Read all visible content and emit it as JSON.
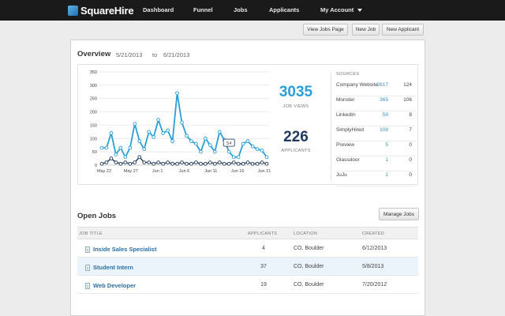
{
  "app": {
    "name": "SquareHire"
  },
  "nav": {
    "items": [
      {
        "label": "Dashboard"
      },
      {
        "label": "Funnel"
      },
      {
        "label": "Jobs"
      },
      {
        "label": "Applicants"
      },
      {
        "label": "My Account"
      }
    ]
  },
  "toolbar": {
    "view_jobs_page": "View Jobs Page",
    "new_job": "New Job",
    "new_applicant": "New Applicant"
  },
  "overview": {
    "title": "Overview",
    "date_from": "5/21/2013",
    "date_sep": "to",
    "date_to": "6/21/2013",
    "job_views": "3035",
    "job_views_label": "JOB VIEWS",
    "applicants": "226",
    "applicants_label": "APPLICANTS",
    "colors": {
      "views": "#2a9fd6",
      "applicants": "#1f3a5c"
    }
  },
  "chart_data": {
    "type": "line",
    "x_tick_labels": [
      "May 22",
      "May 27",
      "Jun 1",
      "Jun 6",
      "Jun 11",
      "Jun 16",
      "Jun 21"
    ],
    "y_ticks": [
      0,
      50,
      100,
      150,
      200,
      250,
      300,
      350
    ],
    "ylim": [
      0,
      350
    ],
    "grid": true,
    "tooltip": "54",
    "series": [
      {
        "values": [
          65,
          65,
          120,
          40,
          65,
          30,
          65,
          155,
          90,
          60,
          125,
          105,
          170,
          120,
          130,
          90,
          270,
          160,
          110,
          90,
          80,
          50,
          100,
          75,
          50,
          125,
          95,
          50,
          30,
          30,
          80,
          90,
          70,
          60,
          55,
          30
        ]
      },
      {
        "values": [
          5,
          10,
          25,
          10,
          5,
          10,
          5,
          10,
          30,
          10,
          10,
          5,
          10,
          5,
          10,
          5,
          5,
          10,
          5,
          5,
          10,
          5,
          5,
          10,
          5,
          10,
          5,
          5,
          10,
          5,
          5,
          10,
          5,
          5,
          10,
          5
        ]
      }
    ]
  },
  "sources": {
    "header": "SOURCES",
    "rows": [
      {
        "name": "Company Website",
        "views": "2617",
        "apps": "124"
      },
      {
        "name": "Monster",
        "views": "365",
        "apps": "106"
      },
      {
        "name": "LinkedIn",
        "views": "59",
        "apps": "8"
      },
      {
        "name": "SimplyHired",
        "views": "108",
        "apps": "7"
      },
      {
        "name": "Preview",
        "views": "5",
        "apps": "0"
      },
      {
        "name": "Glassdoor",
        "views": "1",
        "apps": "0"
      },
      {
        "name": "JuJu",
        "views": "1",
        "apps": "0"
      }
    ]
  },
  "open_jobs": {
    "title": "Open Jobs",
    "manage_label": "Manage Jobs",
    "columns": {
      "title": "JOB TITLE",
      "applicants": "APPLICANTS",
      "location": "LOCATION",
      "created": "CREATED"
    },
    "rows": [
      {
        "title": "Inside Sales Specialist",
        "applicants": "4",
        "location": "CO, Boulder",
        "created": "6/12/2013"
      },
      {
        "title": "Student Intern",
        "applicants": "37",
        "location": "CO, Boulder",
        "created": "5/8/2013"
      },
      {
        "title": "Web Developer",
        "applicants": "19",
        "location": "CO, Boulder",
        "created": "7/20/2012"
      }
    ]
  }
}
